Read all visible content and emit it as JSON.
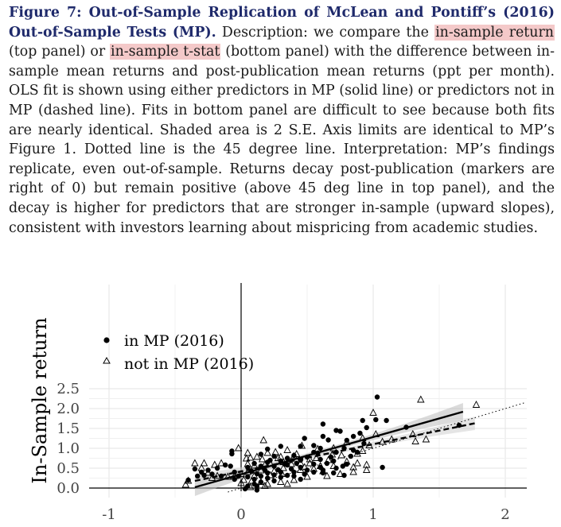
{
  "caption": {
    "title": "Figure 7: Out-of-Sample Replication of McLean and Pontiff’s (2016) Out-of-Sample Tests (MP).",
    "t1": " Description: we compare the ",
    "h1": "in-sample return",
    "t2": " (top panel) or ",
    "h2": "in-sample t-stat",
    "t3": " (bottom panel) with the difference between in-sample mean returns and post-publication mean returns (ppt per month).  OLS fit is shown using either predictors in MP (solid line) or predictors not in MP (dashed line). Fits in bottom panel are difficult to see because both fits are nearly identical. Shaded area is 2 S.E. Axis limits are identical to MP’s Figure 1. Dotted line is the 45 degree line. Interpretation: MP’s findings replicate, even out-of-sample. Returns decay post-publication (markers are right of 0) but remain positive (above 45 deg line in top panel), and the decay is higher for predictors that are stronger in-sample (upward slopes), consistent with investors learning about mispricing from academic studies."
  },
  "chart_data": {
    "type": "scatter",
    "ylabel": "In-Sample return",
    "xlabel": "",
    "xlim": [
      -1.1,
      2.15
    ],
    "ylim": [
      0,
      2.55
    ],
    "xticks": [
      "-1",
      "0",
      "1",
      "2"
    ],
    "yticks": [
      "0.0",
      "0.5",
      "1.0",
      "1.5",
      "2.0",
      "2.5"
    ],
    "grid": true,
    "legend_position": "upper-left",
    "legend": [
      {
        "marker": "filled-circle",
        "label": "in MP (2016)"
      },
      {
        "marker": "open-triangle",
        "label": "not in MP (2016)"
      }
    ],
    "series": [
      {
        "name": "in MP (2016)",
        "marker": "circle",
        "fit": {
          "style": "solid",
          "x": [
            -0.35,
            1.68
          ],
          "y": [
            0.02,
            1.92
          ]
        },
        "points": [
          [
            1.03,
            2.29
          ],
          [
            0.92,
            1.7
          ],
          [
            1.02,
            1.72
          ],
          [
            1.1,
            1.7
          ],
          [
            1.65,
            1.58
          ],
          [
            1.25,
            1.53
          ],
          [
            0.95,
            1.52
          ],
          [
            0.62,
            1.61
          ],
          [
            0.72,
            1.45
          ],
          [
            0.75,
            1.43
          ],
          [
            0.9,
            1.38
          ],
          [
            0.85,
            1.3
          ],
          [
            0.62,
            1.3
          ],
          [
            0.66,
            1.21
          ],
          [
            0.48,
            1.25
          ],
          [
            0.8,
            1.2
          ],
          [
            0.93,
            1.12
          ],
          [
            0.45,
            1.05
          ],
          [
            0.55,
            1.07
          ],
          [
            0.6,
            1.0
          ],
          [
            0.78,
            1.0
          ],
          [
            0.85,
            0.95
          ],
          [
            0.72,
            0.9
          ],
          [
            0.55,
            0.9
          ],
          [
            0.3,
            1.05
          ],
          [
            0.2,
            0.98
          ],
          [
            -0.07,
            0.93
          ],
          [
            -0.07,
            0.86
          ],
          [
            0.15,
            0.85
          ],
          [
            0.25,
            0.8
          ],
          [
            0.4,
            0.82
          ],
          [
            0.35,
            0.75
          ],
          [
            0.5,
            0.78
          ],
          [
            0.45,
            0.7
          ],
          [
            0.6,
            0.72
          ],
          [
            0.7,
            0.68
          ],
          [
            0.3,
            0.68
          ],
          [
            0.2,
            0.65
          ],
          [
            0.1,
            0.62
          ],
          [
            0.42,
            0.62
          ],
          [
            0.55,
            0.6
          ],
          [
            0.65,
            0.62
          ],
          [
            0.8,
            0.6
          ],
          [
            0.35,
            0.58
          ],
          [
            0.25,
            0.55
          ],
          [
            0.15,
            0.55
          ],
          [
            0.05,
            0.52
          ],
          [
            0.45,
            0.52
          ],
          [
            0.6,
            0.52
          ],
          [
            0.72,
            0.5
          ],
          [
            0.38,
            0.48
          ],
          [
            0.28,
            0.46
          ],
          [
            0.18,
            0.45
          ],
          [
            0.5,
            0.45
          ],
          [
            0.62,
            0.45
          ],
          [
            0.08,
            0.42
          ],
          [
            -0.05,
            0.4
          ],
          [
            0.3,
            0.4
          ],
          [
            0.4,
            0.4
          ],
          [
            0.55,
            0.4
          ],
          [
            0.2,
            0.38
          ],
          [
            0.12,
            0.36
          ],
          [
            0.7,
            0.38
          ],
          [
            0.48,
            0.35
          ],
          [
            0.25,
            0.33
          ],
          [
            0.35,
            0.32
          ],
          [
            0.15,
            0.3
          ],
          [
            0.05,
            0.28
          ],
          [
            -0.02,
            0.3
          ],
          [
            0.4,
            0.3
          ],
          [
            0.3,
            0.27
          ],
          [
            0.2,
            0.25
          ],
          [
            0.1,
            0.22
          ],
          [
            0.45,
            0.22
          ],
          [
            0.62,
            0.38
          ],
          [
            0.78,
            0.32
          ],
          [
            0.15,
            0.15
          ],
          [
            0.25,
            0.18
          ],
          [
            0.1,
            0.1
          ],
          [
            0.05,
            0.05
          ],
          [
            0.12,
            0.05
          ],
          [
            0.03,
            -0.02
          ],
          [
            0.12,
            -0.05
          ],
          [
            -0.08,
            0.55
          ],
          [
            -0.12,
            0.58
          ],
          [
            -0.18,
            0.5
          ],
          [
            -0.25,
            0.45
          ],
          [
            -0.3,
            0.4
          ],
          [
            -0.35,
            0.48
          ],
          [
            -0.33,
            0.3
          ],
          [
            -0.22,
            0.35
          ],
          [
            -0.15,
            0.3
          ],
          [
            -0.05,
            0.22
          ],
          [
            -0.4,
            0.2
          ],
          [
            -0.28,
            0.32
          ],
          [
            0.83,
            0.8
          ],
          [
            0.88,
            0.9
          ],
          [
            1.07,
            0.52
          ],
          [
            0.77,
            0.55
          ],
          [
            0.68,
            0.78
          ],
          [
            0.33,
            0.6
          ],
          [
            0.22,
            0.7
          ],
          [
            0.58,
            0.88
          ]
        ]
      },
      {
        "name": "not in MP (2016)",
        "marker": "triangle",
        "fit": {
          "style": "dashed",
          "x": [
            -0.35,
            1.77
          ],
          "y": [
            0.18,
            1.63
          ]
        },
        "points": [
          [
            1.36,
            2.22
          ],
          [
            1.78,
            2.09
          ],
          [
            1.0,
            1.89
          ],
          [
            0.97,
            1.07
          ],
          [
            1.07,
            1.16
          ],
          [
            1.02,
            1.35
          ],
          [
            1.14,
            1.22
          ],
          [
            1.4,
            1.22
          ],
          [
            1.32,
            1.17
          ],
          [
            0.17,
            1.2
          ],
          [
            -0.02,
            1.0
          ],
          [
            0.05,
            0.88
          ],
          [
            0.07,
            0.76
          ],
          [
            0.04,
            0.74
          ],
          [
            0.46,
            1.06
          ],
          [
            0.58,
            0.98
          ],
          [
            0.35,
            0.95
          ],
          [
            0.88,
            0.86
          ],
          [
            0.92,
            0.93
          ],
          [
            0.76,
            0.82
          ],
          [
            0.69,
            0.84
          ],
          [
            0.4,
            0.8
          ],
          [
            0.3,
            0.78
          ],
          [
            0.28,
            0.75
          ],
          [
            0.52,
            0.72
          ],
          [
            0.66,
            0.7
          ],
          [
            0.8,
            0.66
          ],
          [
            0.88,
            0.62
          ],
          [
            0.95,
            0.58
          ],
          [
            0.6,
            0.55
          ],
          [
            0.38,
            0.6
          ],
          [
            0.32,
            0.65
          ],
          [
            0.22,
            0.62
          ],
          [
            0.18,
            0.58
          ],
          [
            0.1,
            0.56
          ],
          [
            0.48,
            0.52
          ],
          [
            0.55,
            0.48
          ],
          [
            0.45,
            0.45
          ],
          [
            0.32,
            0.5
          ],
          [
            0.25,
            0.42
          ],
          [
            0.15,
            0.44
          ],
          [
            0.05,
            0.4
          ],
          [
            0.0,
            0.35
          ],
          [
            -0.05,
            0.3
          ],
          [
            -0.1,
            0.28
          ],
          [
            -0.18,
            0.3
          ],
          [
            -0.25,
            0.38
          ],
          [
            -0.3,
            0.5
          ],
          [
            -0.28,
            0.62
          ],
          [
            -0.2,
            0.58
          ],
          [
            -0.15,
            0.62
          ],
          [
            -0.35,
            0.62
          ],
          [
            -0.22,
            0.25
          ],
          [
            -0.4,
            0.18
          ],
          [
            -0.42,
            0.08
          ],
          [
            0.02,
            0.2
          ],
          [
            0.08,
            0.18
          ],
          [
            0.15,
            0.15
          ],
          [
            0.2,
            0.1
          ],
          [
            0.3,
            0.15
          ],
          [
            0.4,
            0.2
          ],
          [
            0.5,
            0.28
          ],
          [
            0.65,
            0.3
          ],
          [
            0.75,
            0.35
          ],
          [
            0.85,
            0.4
          ],
          [
            0.95,
            0.45
          ],
          [
            0.62,
            0.42
          ],
          [
            1.3,
            1.35
          ],
          [
            0.92,
            1.25
          ],
          [
            0.1,
            0.3
          ],
          [
            0.0,
            0.12
          ],
          [
            0.18,
            0.05
          ],
          [
            0.07,
            0.02
          ],
          [
            0.35,
            0.1
          ],
          [
            0.45,
            0.62
          ],
          [
            0.7,
            1.0
          ],
          [
            0.8,
            1.15
          ],
          [
            0.12,
            0.78
          ],
          [
            0.2,
            0.88
          ],
          [
            0.57,
            0.75
          ],
          [
            0.42,
            0.85
          ],
          [
            0.26,
            0.9
          ],
          [
            0.16,
            0.72
          ],
          [
            0.36,
            0.7
          ],
          [
            0.52,
            0.62
          ],
          [
            0.7,
            0.55
          ],
          [
            0.85,
            0.52
          ],
          [
            0.31,
            0.35
          ],
          [
            0.22,
            0.32
          ],
          [
            0.05,
            0.6
          ]
        ]
      }
    ],
    "reference_line": {
      "style": "dotted",
      "label": "45 degree line",
      "x": [
        -0.1,
        2.15
      ],
      "y": [
        -0.1,
        2.15
      ]
    }
  }
}
